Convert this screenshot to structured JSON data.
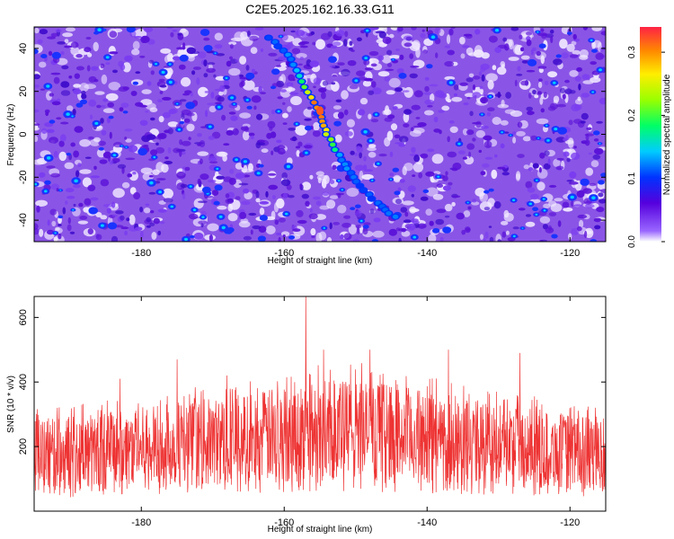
{
  "title": "C2E5.2025.162.16.33.G11",
  "chart_data": [
    {
      "type": "heatmap",
      "name": "frequency-vs-height",
      "title": "C2E5.2025.162.16.33.G11",
      "xlabel": "Height of straight line (km)",
      "ylabel": "Frequency (Hz)",
      "xlim": [
        -195,
        -115
      ],
      "ylim": [
        -50,
        50
      ],
      "xticks": [
        -180,
        -160,
        -140,
        -120
      ],
      "yticks": [
        -40,
        -20,
        0,
        20,
        40
      ],
      "colorbar": {
        "label": "Normalized spectral amplitude",
        "range": [
          0.0,
          0.34
        ],
        "ticks": [
          0.0,
          0.1,
          0.2,
          0.3
        ]
      },
      "background_level": 0.05,
      "ridge": {
        "description": "bright diagonal streak",
        "points": [
          {
            "x": -162,
            "y": 45
          },
          {
            "x": -159,
            "y": 35
          },
          {
            "x": -157,
            "y": 22
          },
          {
            "x": -155,
            "y": 10
          },
          {
            "x": -154,
            "y": 0
          },
          {
            "x": -152,
            "y": -12
          },
          {
            "x": -150,
            "y": -22
          },
          {
            "x": -147,
            "y": -32
          },
          {
            "x": -144,
            "y": -40
          }
        ],
        "peak": {
          "x": -155,
          "y": 11,
          "value": 0.32
        }
      }
    },
    {
      "type": "line",
      "name": "snr-vs-height",
      "xlabel": "Height of straight line (km)",
      "ylabel": "SNR (10 * v/v)",
      "xlim": [
        -195,
        -115
      ],
      "ylim": [
        0,
        665
      ],
      "xticks": [
        -180,
        -160,
        -140,
        -120
      ],
      "yticks": [
        200,
        400,
        600
      ],
      "color": "#ee3333",
      "envelope": [
        {
          "x": -195,
          "lo": 40,
          "hi": 300
        },
        {
          "x": -185,
          "lo": 45,
          "hi": 330
        },
        {
          "x": -175,
          "lo": 50,
          "hi": 360
        },
        {
          "x": -165,
          "lo": 55,
          "hi": 390
        },
        {
          "x": -157,
          "lo": 60,
          "hi": 430
        },
        {
          "x": -150,
          "lo": 60,
          "hi": 440
        },
        {
          "x": -140,
          "lo": 55,
          "hi": 400
        },
        {
          "x": -130,
          "lo": 50,
          "hi": 360
        },
        {
          "x": -120,
          "lo": 45,
          "hi": 320
        },
        {
          "x": -115,
          "lo": 40,
          "hi": 300
        }
      ],
      "peaks": [
        {
          "x": -157,
          "y": 665
        },
        {
          "x": -154.5,
          "y": 500
        },
        {
          "x": -148,
          "y": 500
        },
        {
          "x": -137,
          "y": 500
        },
        {
          "x": -175,
          "y": 470
        },
        {
          "x": -127,
          "y": 490
        },
        {
          "x": -183,
          "y": 410
        },
        {
          "x": -168,
          "y": 420
        }
      ]
    }
  ]
}
